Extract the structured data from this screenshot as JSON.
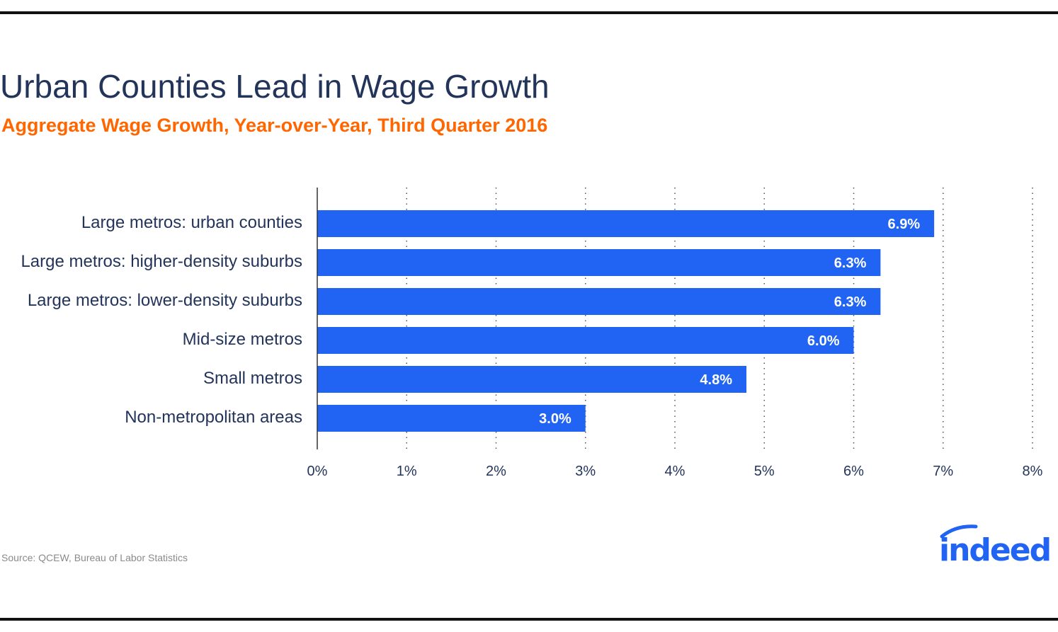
{
  "title": "Urban Counties Lead in Wage Growth",
  "subtitle": "Aggregate Wage Growth, Year-over-Year, Third Quarter 2016",
  "source": "Source: QCEW, Bureau of Labor Statistics",
  "brand": {
    "name": "indeed",
    "color": "#2164f3",
    "title_color": "#23345b",
    "subtitle_color": "#ff6600",
    "text_color": "#23345b"
  },
  "chart_data": {
    "type": "bar",
    "orientation": "horizontal",
    "title": "Urban Counties Lead in Wage Growth",
    "subtitle": "Aggregate Wage Growth, Year-over-Year, Third Quarter 2016",
    "xlabel": "",
    "ylabel": "",
    "categories": [
      "Large metros: urban counties",
      "Large metros: higher-density suburbs",
      "Large metros: lower-density suburbs",
      "Mid-size metros",
      "Small metros",
      "Non-metropolitan areas"
    ],
    "values": [
      6.9,
      6.3,
      6.3,
      6.0,
      4.8,
      3.0
    ],
    "value_labels": [
      "6.9%",
      "6.3%",
      "6.3%",
      "6.0%",
      "4.8%",
      "3.0%"
    ],
    "xlim": [
      0,
      8
    ],
    "xticks": [
      0,
      1,
      2,
      3,
      4,
      5,
      6,
      7,
      8
    ],
    "xtick_labels": [
      "0%",
      "1%",
      "2%",
      "3%",
      "4%",
      "5%",
      "6%",
      "7%",
      "8%"
    ],
    "grid": "vertical dotted",
    "legend": "none",
    "bar_color": "#2164f3"
  }
}
